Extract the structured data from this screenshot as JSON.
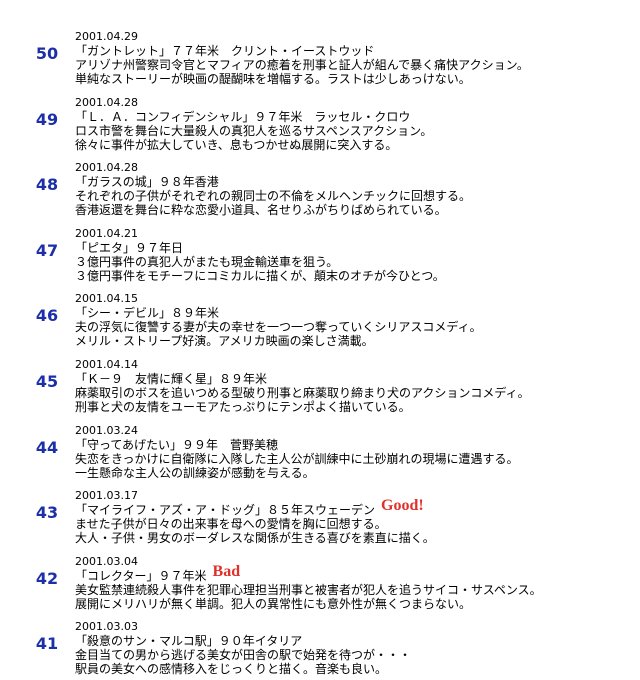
{
  "entries": [
    {
      "number": "50",
      "date": "2001.04.29",
      "title": "「ガントレット」７７年米　クリント・イーストウッド",
      "lines": [
        "アリゾナ州警察司令官とマフィアの癒着を刑事と証人が組んで暴く痛快アクション。",
        "単純なストーリーが映画の醍醐味を増幅する。ラストは少しあっけない。"
      ]
    },
    {
      "number": "49",
      "date": "2001.04.28",
      "title": "「Ｌ．Ａ．コンフィデンシャル」９７年米　ラッセル・クロウ",
      "lines": [
        "ロス市警を舞台に大量殺人の真犯人を巡るサスペンスアクション。",
        "徐々に事件が拡大していき、息もつかせぬ展開に突入する。"
      ]
    },
    {
      "number": "48",
      "date": "2001.04.28",
      "title": "「ガラスの城」９８年香港",
      "lines": [
        "それぞれの子供がそれぞれの親同士の不倫をメルヘンチックに回想する。",
        "香港返還を舞台に粋な恋愛小道具、名せりふがちりばめられている。"
      ]
    },
    {
      "number": "47",
      "date": "2001.04.21",
      "title": "「ピエタ」９７年日",
      "lines": [
        "３億円事件の真犯人がまたも現金輸送車を狙う。",
        "３億円事件をモチーフにコミカルに描くが、顛末のオチが今ひとつ。"
      ]
    },
    {
      "number": "46",
      "date": "2001.04.15",
      "title": "「シー・デビル」８９年米",
      "lines": [
        "夫の浮気に復讐する妻が夫の幸せを一つ一つ奪っていくシリアスコメディ。",
        "メリル・ストリープ好演。アメリカ映画の楽しさ満載。"
      ]
    },
    {
      "number": "45",
      "date": "2001.04.14",
      "title": "「Ｋ－９　友情に輝く星」８９年米",
      "lines": [
        "麻薬取引のボスを追いつめる型破り刑事と麻薬取り締まり犬のアクションコメディ。",
        "刑事と犬の友情をユーモアたっぷりにテンポよく描いている。"
      ]
    },
    {
      "number": "44",
      "date": "2001.03.24",
      "title": "「守ってあげたい」９９年　菅野美穂",
      "lines": [
        "失恋をきっかけに自衛隊に入隊した主人公が訓練中に土砂崩れの現場に遭遇する。",
        "一生懸命な主人公の訓練姿が感動を与える。"
      ]
    },
    {
      "number": "43",
      "date": "2001.03.17",
      "title": "「マイライフ・アズ・ア・ドッグ」８５年スウェーデン",
      "badge": "Good!",
      "lines": [
        "ませた子供が日々の出来事を母への愛情を胸に回想する。",
        "大人・子供・男女のボーダレスな関係が生きる喜びを素直に描く。"
      ]
    },
    {
      "number": "42",
      "date": "2001.03.04",
      "title": "「コレクター」９７年米",
      "badge": "Bad",
      "lines": [
        "美女監禁連続殺人事件を犯罪心理担当刑事と被害者が犯人を追うサイコ・サスペンス。",
        "展開にメリハリが無く単調。犯人の異常性にも意外性が無くつまらない。"
      ]
    },
    {
      "number": "41",
      "date": "2001.03.03",
      "title": "「殺意のサン・マルコ駅」９０年イタリア",
      "lines": [
        "金目当ての男から逃げる美女が田舎の駅で始発を待つが・・・",
        "駅員の美女への感情移入をじっくりと描く。音楽も良い。"
      ]
    }
  ]
}
